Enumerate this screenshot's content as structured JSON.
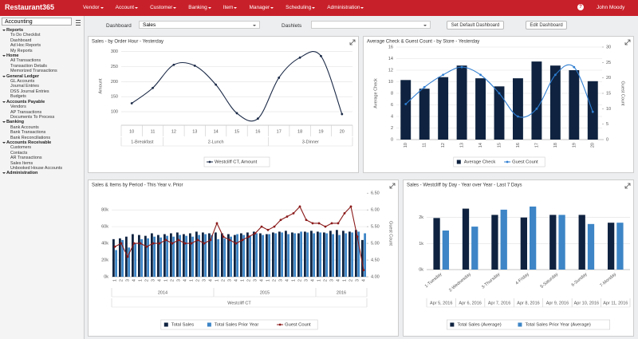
{
  "nav": {
    "logo": "Restaurant365",
    "menu": [
      "Vendor",
      "Account",
      "Customer",
      "Banking",
      "Item",
      "Manager",
      "Scheduling",
      "Administration"
    ],
    "help": "?",
    "user": "John Moody"
  },
  "sidebar": {
    "module": "Accounting",
    "sections": [
      {
        "title": "Reports",
        "items": [
          "To Do Checklist",
          "Dashboard",
          "Ad Hoc Reports",
          "My Reports"
        ]
      },
      {
        "title": "Home",
        "items": [
          "All Transactions",
          "Transaction Details",
          "Memorized Transactions"
        ]
      },
      {
        "title": "General Ledger",
        "items": [
          "GL Accounts",
          "Journal Entries",
          "DSS Journal Entries",
          "Budgets"
        ]
      },
      {
        "title": "Accounts Payable",
        "items": [
          "Vendors",
          "AP Transactions",
          "Documents To Process"
        ]
      },
      {
        "title": "Banking",
        "items": [
          "Bank Accounts",
          "Bank Transactions",
          "Bank Reconciliations"
        ]
      },
      {
        "title": "Accounts Receivable",
        "items": [
          "Customers",
          "Contacts",
          "AR Transactions",
          "Sales Items",
          "Unbooked House Accounts"
        ]
      },
      {
        "title": "Administration",
        "items": []
      }
    ]
  },
  "toolbar": {
    "dashboard_label": "Dashboard",
    "dashboard": "Sales",
    "dashlets_label": "Dashlets",
    "buttons": [
      "Set Default Dashboard",
      "Edit Dashboard"
    ]
  },
  "chart_data": [
    {
      "type": "line",
      "title": "Sales - by Order Hour - Yesterday",
      "categories": [
        "10",
        "11",
        "12",
        "13",
        "14",
        "15",
        "16",
        "17",
        "18",
        "19",
        "20"
      ],
      "groups": [
        [
          "1-Breakfast",
          "1-Breakfast",
          "2-Lunch",
          "2-Lunch",
          "2-Lunch",
          "2-Lunch",
          "2-Lunch",
          "3-Dinner",
          "3-Dinner",
          "3-Dinner",
          "3-Dinner"
        ]
      ],
      "ylabel": "Amount",
      "ylim": [
        55,
        315
      ],
      "yticks": [
        100,
        150,
        200,
        250,
        300
      ],
      "grid": true,
      "series": [
        {
          "name": "Westcliff CT, Amount",
          "color": "#1b2a47",
          "smooth": true,
          "values": [
            128,
            179,
            256,
            253,
            190,
            95,
            77,
            213,
            280,
            285,
            92
          ]
        }
      ]
    },
    {
      "type": "bar",
      "title": "Average Check & Guest Count - by Store - Yesterday",
      "categories": [
        "10",
        "11",
        "12",
        "13",
        "14",
        "15",
        "16",
        "17",
        "18",
        "19",
        "20"
      ],
      "ylabel": "Average Check",
      "y2label": "Guest Count",
      "ylim": [
        0,
        16
      ],
      "yticks": [
        0,
        2,
        4,
        6,
        8,
        10,
        12,
        14,
        16
      ],
      "y2lim": [
        0,
        30
      ],
      "y2ticks": [
        0,
        5,
        10,
        15,
        20,
        25,
        30
      ],
      "grid": true,
      "series": [
        {
          "name": "Average Check",
          "color": "#0f2340",
          "values": [
            10.3,
            8.8,
            10.8,
            12.8,
            10.6,
            9.2,
            10.6,
            13.5,
            12.8,
            12.0,
            10.1
          ]
        },
        {
          "name": "Guest Count",
          "type": "line",
          "axis": "y2",
          "smooth": true,
          "color": "#2e7dd1",
          "values": [
            11.5,
            17,
            21,
            23.5,
            21,
            15,
            7.5,
            10,
            21,
            23.5,
            9
          ]
        }
      ]
    },
    {
      "type": "bar",
      "title": "Sales & Items by Period - This Year v. Prior",
      "categories": [
        "1",
        "2",
        "3",
        "4",
        "1",
        "2",
        "3",
        "4",
        "1",
        "2",
        "3",
        "4",
        "1",
        "2",
        "3",
        "4",
        "1",
        "2",
        "3",
        "4",
        "1",
        "2",
        "3",
        "4",
        "1",
        "2",
        "3",
        "4",
        "1",
        "2",
        "3",
        "4",
        "1",
        "2",
        "3",
        "4",
        "1",
        "2",
        "3",
        "4"
      ],
      "groups": [
        [
          "2014",
          "2014",
          "2014",
          "2014",
          "2014",
          "2014",
          "2014",
          "2014",
          "2014",
          "2014",
          "2014",
          "2014",
          "2014",
          "2014",
          "2014",
          "2014",
          "2015",
          "2015",
          "2015",
          "2015",
          "2015",
          "2015",
          "2015",
          "2015",
          "2015",
          "2015",
          "2015",
          "2015",
          "2015",
          "2015",
          "2015",
          "2015",
          "2016",
          "2016",
          "2016",
          "2016",
          "2016",
          "2016",
          "2016",
          "2016"
        ],
        [
          "Westcliff CT",
          "Westcliff CT",
          "Westcliff CT",
          "Westcliff CT",
          "Westcliff CT",
          "Westcliff CT",
          "Westcliff CT",
          "Westcliff CT",
          "Westcliff CT",
          "Westcliff CT",
          "Westcliff CT",
          "Westcliff CT",
          "Westcliff CT",
          "Westcliff CT",
          "Westcliff CT",
          "Westcliff CT",
          "Westcliff CT",
          "Westcliff CT",
          "Westcliff CT",
          "Westcliff CT",
          "Westcliff CT",
          "Westcliff CT",
          "Westcliff CT",
          "Westcliff CT",
          "Westcliff CT",
          "Westcliff CT",
          "Westcliff CT",
          "Westcliff CT",
          "Westcliff CT",
          "Westcliff CT",
          "Westcliff CT",
          "Westcliff CT",
          "Westcliff CT",
          "Westcliff CT",
          "Westcliff CT",
          "Westcliff CT",
          "Westcliff CT",
          "Westcliff CT",
          "Westcliff CT",
          "Westcliff CT"
        ]
      ],
      "y2label": "Guest Count",
      "ylim": [
        0,
        104000
      ],
      "yticks": [
        {
          "value": 0,
          "label": "0k"
        },
        {
          "value": 20000,
          "label": "20k"
        },
        {
          "value": 40000,
          "label": "40k"
        },
        {
          "value": 60000,
          "label": "60k"
        },
        {
          "value": 80000,
          "label": "80k"
        }
      ],
      "y2lim": [
        4,
        6.6
      ],
      "y2ticks": [
        {
          "value": 4,
          "label": "4.00"
        },
        {
          "value": 4.5,
          "label": "4.50"
        },
        {
          "value": 5,
          "label": "5.00"
        },
        {
          "value": 5.5,
          "label": "5.50"
        },
        {
          "value": 6,
          "label": "6.00"
        },
        {
          "value": 6.5,
          "label": "6.50"
        }
      ],
      "grid": true,
      "series": [
        {
          "name": "Total Sales",
          "color": "#0f2340",
          "values": [
            45000,
            46000,
            48000,
            51000,
            50000,
            49000,
            52000,
            50000,
            51000,
            52000,
            53000,
            51000,
            52000,
            54000,
            53000,
            52000,
            53000,
            52000,
            51000,
            50000,
            52000,
            53000,
            54000,
            52000,
            51000,
            53000,
            54000,
            55000,
            53000,
            52000,
            54000,
            55000,
            54000,
            53000,
            55000,
            56000,
            55000,
            54000,
            56000,
            44000
          ]
        },
        {
          "name": "Total Sales Prior Year",
          "color": "#3d85c6",
          "values": [
            32000,
            44000,
            35000,
            40000,
            45000,
            46000,
            48000,
            47000,
            49000,
            48000,
            50000,
            49000,
            48000,
            50000,
            51000,
            50000,
            45000,
            46000,
            48000,
            51000,
            50000,
            49000,
            52000,
            50000,
            51000,
            52000,
            53000,
            51000,
            52000,
            54000,
            53000,
            52000,
            53000,
            52000,
            51000,
            50000,
            52000,
            53000,
            54000,
            52000
          ]
        },
        {
          "name": "Guest Count",
          "type": "line",
          "axis": "y2",
          "color": "#8b1a1a",
          "values": [
            4.9,
            5.0,
            4.6,
            5.0,
            5.0,
            4.9,
            5.0,
            5.0,
            5.1,
            5.0,
            5.1,
            5.0,
            5.0,
            5.1,
            5.0,
            5.1,
            5.6,
            5.2,
            5.1,
            5.0,
            5.1,
            5.2,
            5.3,
            5.5,
            5.4,
            5.5,
            5.7,
            5.8,
            5.9,
            6.1,
            5.7,
            5.6,
            5.6,
            5.5,
            5.6,
            5.6,
            5.9,
            6.1,
            5.2,
            4.2
          ]
        }
      ]
    },
    {
      "type": "bar",
      "title": "Sales - Westcliff by Day - Year over Year - Last 7 Days",
      "categories": [
        "1-Tuesday",
        "2-Wednesday",
        "3-Thursday",
        "4-Friday",
        "5-Saturday",
        "6-Sunday",
        "7-Monday"
      ],
      "groups": [
        [
          "Apr 5, 2016",
          "Apr 6, 2016",
          "Apr 7, 2016",
          "Apr 8, 2016",
          "Apr 9, 2016",
          "Apr 10, 2016",
          "Apr 11, 2016"
        ]
      ],
      "ylim": [
        0,
        3000
      ],
      "yticks": [
        {
          "value": 0,
          "label": "0k"
        },
        {
          "value": 1000,
          "label": "1k"
        },
        {
          "value": 2000,
          "label": "2k"
        }
      ],
      "grid": true,
      "series": [
        {
          "name": "Total Sales (Average)",
          "color": "#0f2340",
          "values": [
            1980,
            2340,
            2100,
            2000,
            2100,
            2100,
            1800
          ]
        },
        {
          "name": "Total Sales Prior Year (Average)",
          "color": "#3d85c6",
          "values": [
            1500,
            1650,
            2300,
            2420,
            2100,
            1750,
            1800
          ]
        }
      ]
    }
  ]
}
